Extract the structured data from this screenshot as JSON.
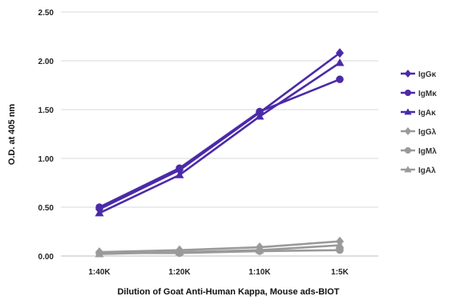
{
  "chart_data": {
    "type": "line",
    "title": "",
    "xlabel": "Dilution of Goat Anti-Human Kappa, Mouse ads-BIOT",
    "ylabel": "O.D. at 405 nm",
    "categories": [
      "1:40K",
      "1:20K",
      "1:10K",
      "1:5K"
    ],
    "ylim": [
      0,
      2.5
    ],
    "yticks": [
      "0.00",
      "0.50",
      "1.00",
      "1.50",
      "2.00",
      "2.50"
    ],
    "grid": true,
    "legend_position": "right",
    "series": [
      {
        "name": "IgGκ",
        "values": [
          0.48,
          0.88,
          1.47,
          2.08
        ],
        "color": "#4b2aa8",
        "marker": "diamond"
      },
      {
        "name": "IgMκ",
        "values": [
          0.5,
          0.9,
          1.48,
          1.81
        ],
        "color": "#4b2aa8",
        "marker": "circle"
      },
      {
        "name": "IgAκ",
        "values": [
          0.44,
          0.83,
          1.43,
          1.98
        ],
        "color": "#4b2aa8",
        "marker": "triangle"
      },
      {
        "name": "IgGλ",
        "values": [
          0.04,
          0.06,
          0.09,
          0.15
        ],
        "color": "#9a9a9a",
        "marker": "diamond"
      },
      {
        "name": "IgMλ",
        "values": [
          0.03,
          0.03,
          0.05,
          0.06
        ],
        "color": "#9a9a9a",
        "marker": "circle"
      },
      {
        "name": "IgAλ",
        "values": [
          0.02,
          0.04,
          0.06,
          0.11
        ],
        "color": "#9a9a9a",
        "marker": "triangle"
      }
    ]
  }
}
